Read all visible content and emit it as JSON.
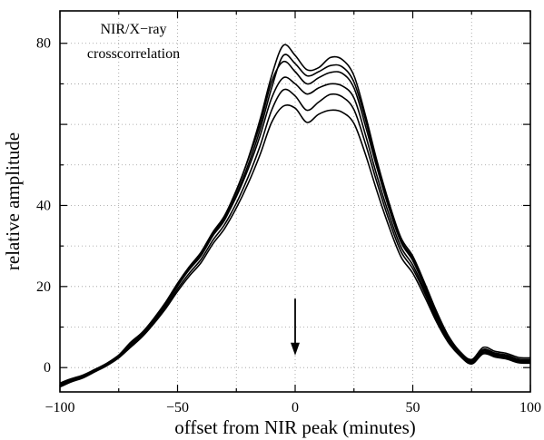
{
  "chart_data": {
    "type": "line",
    "title": "",
    "annotation": [
      "NIR/X−ray",
      "crosscorrelation"
    ],
    "xlabel": "offset from NIR peak (minutes)",
    "ylabel": "relative amplitude",
    "xlim": [
      -100,
      100
    ],
    "ylim": [
      -6,
      88
    ],
    "xticks": [
      {
        "value": -100,
        "label": "−100"
      },
      {
        "value": -50,
        "label": "−50"
      },
      {
        "value": 0,
        "label": "0"
      },
      {
        "value": 50,
        "label": "50"
      },
      {
        "value": 100,
        "label": "100"
      }
    ],
    "yticks": [
      {
        "value": 0,
        "label": "0"
      },
      {
        "value": 20,
        "label": "20"
      },
      {
        "value": 40,
        "label": "40"
      },
      {
        "value": 60,
        "label": ""
      },
      {
        "value": 80,
        "label": "80"
      }
    ],
    "grid": true,
    "arrow": {
      "x": 0,
      "y_from": 17,
      "y_to": 3
    },
    "series": [
      {
        "x": [
          -100,
          -95,
          -90,
          -85,
          -80,
          -75,
          -70,
          -65,
          -60,
          -55,
          -50,
          -45,
          -40,
          -35,
          -30,
          -25,
          -20,
          -15,
          -10,
          -5,
          0,
          5,
          10,
          15,
          20,
          25,
          30,
          35,
          40,
          45,
          50,
          55,
          60,
          65,
          70,
          75,
          80,
          85,
          90,
          95,
          100
        ],
        "values": [
          -4.2,
          -3,
          -2,
          -0.5,
          1,
          3,
          6,
          8.5,
          12,
          16,
          20.5,
          24.5,
          28,
          33,
          37,
          43.5,
          51.5,
          61,
          72,
          79.5,
          77,
          73.5,
          74,
          76.5,
          76,
          72,
          62,
          50.5,
          40.5,
          32,
          27.5,
          21,
          14,
          8,
          4,
          2,
          5,
          4,
          3.5,
          2.5,
          2.4
        ]
      },
      {
        "x": [
          -100,
          -95,
          -90,
          -85,
          -80,
          -75,
          -70,
          -65,
          -60,
          -55,
          -50,
          -45,
          -40,
          -35,
          -30,
          -25,
          -20,
          -15,
          -10,
          -5,
          0,
          5,
          10,
          15,
          20,
          25,
          30,
          35,
          40,
          45,
          50,
          55,
          60,
          65,
          70,
          75,
          80,
          85,
          90,
          95,
          100
        ],
        "values": [
          -4.6,
          -3.4,
          -2.2,
          -0.7,
          0.8,
          2.8,
          5.6,
          8.2,
          11.7,
          15.6,
          20.1,
          24.2,
          27.6,
          32.5,
          36.4,
          42.6,
          50,
          58.5,
          69,
          77,
          75,
          72,
          73,
          74.5,
          74.2,
          70.4,
          60.9,
          49.4,
          39.8,
          31.4,
          26.9,
          20.4,
          13.4,
          7.6,
          3.7,
          1.7,
          4.5,
          3.6,
          3.1,
          2.1,
          2
        ]
      },
      {
        "x": [
          -100,
          -95,
          -90,
          -85,
          -80,
          -75,
          -70,
          -65,
          -60,
          -55,
          -50,
          -45,
          -40,
          -35,
          -30,
          -25,
          -20,
          -15,
          -10,
          -5,
          0,
          5,
          10,
          15,
          20,
          25,
          30,
          35,
          40,
          45,
          50,
          55,
          60,
          65,
          70,
          75,
          80,
          85,
          90,
          95,
          100
        ],
        "values": [
          -3.8,
          -2.7,
          -1.8,
          -0.4,
          1.1,
          3.1,
          6.2,
          8.7,
          12.2,
          16.2,
          20.8,
          24.9,
          28.5,
          33.4,
          37.5,
          43.8,
          51.3,
          59.8,
          70.5,
          75.5,
          73,
          70,
          71.5,
          72.8,
          72.6,
          69,
          59.4,
          48.8,
          39.1,
          30.9,
          26.4,
          20,
          13,
          7.3,
          3.5,
          1.5,
          4.2,
          3.3,
          2.8,
          1.8,
          1.7
        ]
      },
      {
        "x": [
          -100,
          -95,
          -90,
          -85,
          -80,
          -75,
          -70,
          -65,
          -60,
          -55,
          -50,
          -45,
          -40,
          -35,
          -30,
          -25,
          -20,
          -15,
          -10,
          -5,
          0,
          5,
          10,
          15,
          20,
          25,
          30,
          35,
          40,
          45,
          50,
          55,
          60,
          65,
          70,
          75,
          80,
          85,
          90,
          95,
          100
        ],
        "values": [
          -4,
          -2.9,
          -2,
          -0.6,
          0.9,
          2.9,
          5.8,
          8.3,
          11.9,
          15.8,
          20.3,
          24.3,
          27.8,
          32.7,
          36.6,
          42.2,
          49,
          57,
          66.5,
          71.5,
          70,
          67.5,
          69,
          70,
          69.5,
          66.5,
          57.2,
          46.8,
          37.6,
          29.7,
          25.3,
          19.2,
          12.5,
          7,
          3.3,
          1.3,
          4,
          3.1,
          2.6,
          1.6,
          1.5
        ]
      },
      {
        "x": [
          -100,
          -95,
          -90,
          -85,
          -80,
          -75,
          -70,
          -65,
          -60,
          -55,
          -50,
          -45,
          -40,
          -35,
          -30,
          -25,
          -20,
          -15,
          -10,
          -5,
          0,
          5,
          10,
          15,
          20,
          25,
          30,
          35,
          40,
          45,
          50,
          55,
          60,
          65,
          70,
          75,
          80,
          85,
          90,
          95,
          100
        ],
        "values": [
          -4.4,
          -3.2,
          -2.3,
          -0.8,
          0.7,
          2.6,
          5.3,
          7.9,
          11.3,
          15.1,
          19.4,
          23.3,
          26.7,
          31.4,
          35.3,
          40.6,
          47,
          54.5,
          63.5,
          68.5,
          67,
          63.5,
          65.5,
          67.4,
          66.8,
          63.6,
          55,
          45.2,
          36.2,
          28.6,
          24.4,
          18.5,
          12,
          6.7,
          3.1,
          1.1,
          3.7,
          2.9,
          2.4,
          1.4,
          1.3
        ]
      },
      {
        "x": [
          -100,
          -95,
          -90,
          -85,
          -80,
          -75,
          -70,
          -65,
          -60,
          -55,
          -50,
          -45,
          -40,
          -35,
          -30,
          -25,
          -20,
          -15,
          -10,
          -5,
          0,
          5,
          10,
          15,
          20,
          25,
          30,
          35,
          40,
          45,
          50,
          55,
          60,
          65,
          70,
          75,
          80,
          85,
          90,
          95,
          100
        ],
        "values": [
          -4.8,
          -3.5,
          -2.5,
          -1,
          0.5,
          2.4,
          5,
          7.6,
          10.9,
          14.6,
          18.8,
          22.6,
          25.9,
          30.5,
          34.3,
          39.4,
          45.4,
          52.4,
          60.5,
          64.5,
          64,
          60.5,
          62.5,
          63.5,
          63,
          60.2,
          52.4,
          43.1,
          34.6,
          27.3,
          23.3,
          17.6,
          11.4,
          6.3,
          2.9,
          0.9,
          3.4,
          2.6,
          2.1,
          1.2,
          1.1
        ]
      }
    ]
  }
}
